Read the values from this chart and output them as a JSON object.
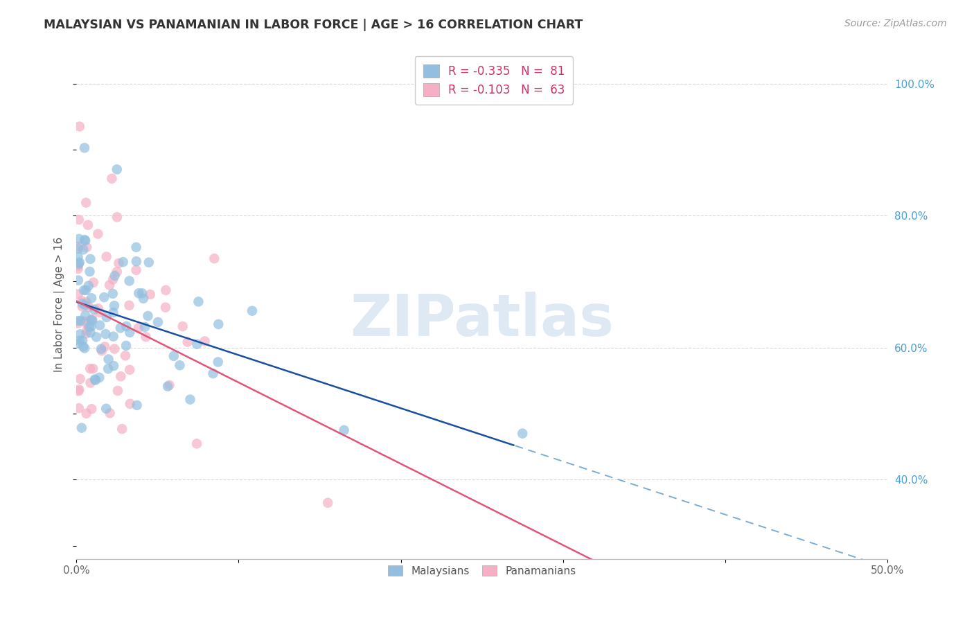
{
  "title": "MALAYSIAN VS PANAMANIAN IN LABOR FORCE | AGE > 16 CORRELATION CHART",
  "source": "Source: ZipAtlas.com",
  "ylabel": "In Labor Force | Age > 16",
  "xlim": [
    0.0,
    0.5
  ],
  "ylim": [
    0.28,
    1.05
  ],
  "x_ticks": [
    0.0,
    0.1,
    0.2,
    0.3,
    0.4,
    0.5
  ],
  "x_tick_labels": [
    "0.0%",
    "",
    "",
    "",
    "",
    "50.0%"
  ],
  "y_ticks_right": [
    0.4,
    0.6,
    0.8,
    1.0
  ],
  "y_tick_labels_right": [
    "40.0%",
    "60.0%",
    "80.0%",
    "100.0%"
  ],
  "R_malay": -0.335,
  "N_malay": 81,
  "R_panama": -0.103,
  "N_panama": 63,
  "blue_scatter_color": "#92bfe0",
  "pink_scatter_color": "#f5b0c5",
  "blue_line_color": "#1a4fa0",
  "pink_line_color": "#e05578",
  "blue_dash_color": "#7aadd4",
  "watermark": "ZIPatlas",
  "watermark_color": "#c5d8ec",
  "grid_color": "#d8d8d8",
  "blue_solid_cutoff": 0.27,
  "legend_R1": "R = -0.335",
  "legend_N1": "N =  81",
  "legend_R2": "R = -0.103",
  "legend_N2": "N =  63",
  "legend_bottom_1": "Malaysians",
  "legend_bottom_2": "Panamanians"
}
